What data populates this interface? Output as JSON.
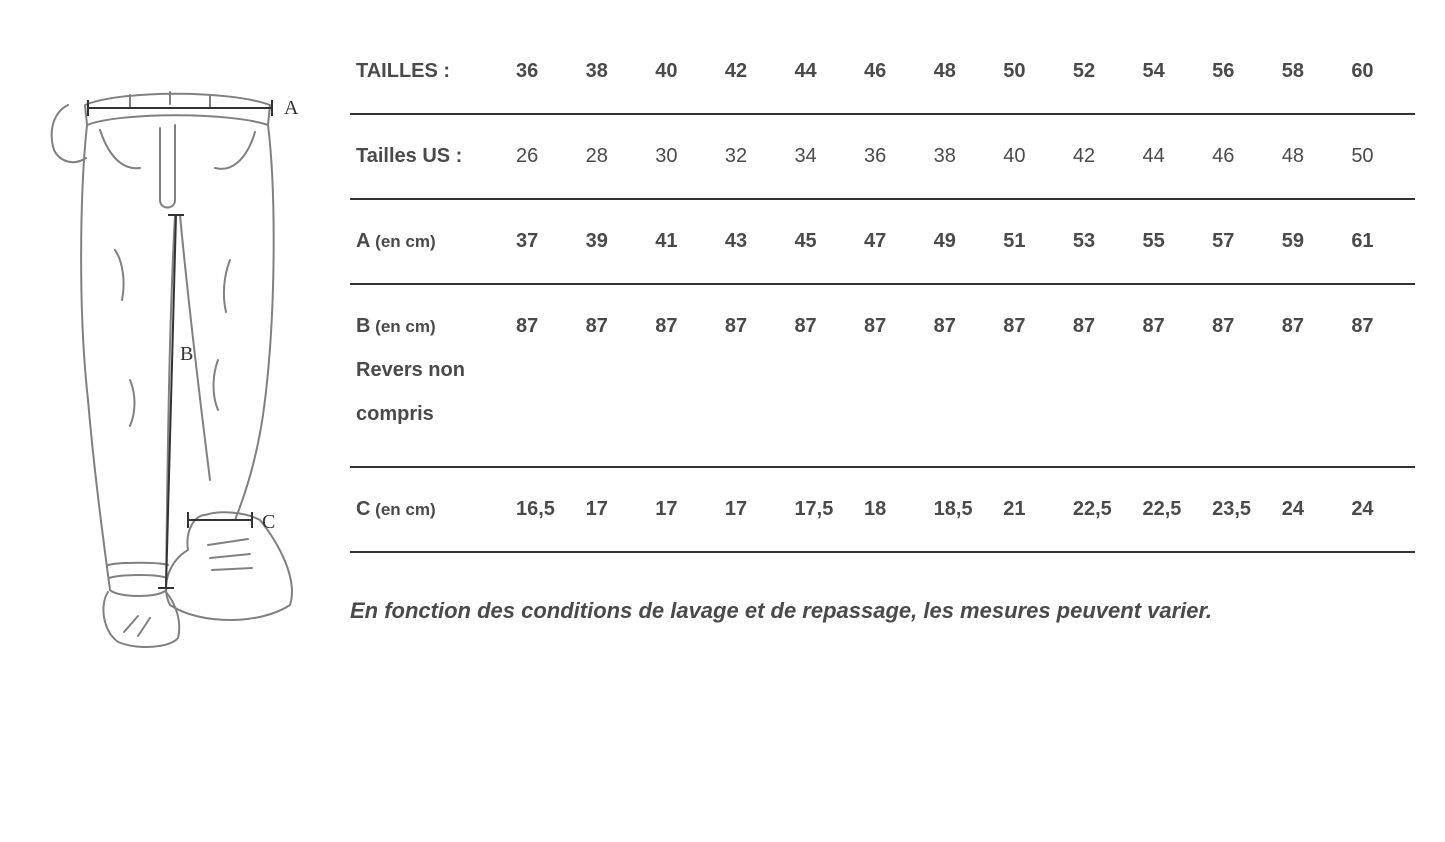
{
  "diagram": {
    "labels": {
      "a": "A",
      "b": "B",
      "c": "C"
    },
    "stroke_color": "#808080",
    "label_color": "#333333"
  },
  "table": {
    "header_label": "TAILLES :",
    "header_values": [
      "36",
      "38",
      "40",
      "42",
      "44",
      "46",
      "48",
      "50",
      "52",
      "54",
      "56",
      "58",
      "60"
    ],
    "rows": [
      {
        "label": "Tailles US :",
        "label_extra": "",
        "values": [
          "26",
          "28",
          "30",
          "32",
          "34",
          "36",
          "38",
          "40",
          "42",
          "44",
          "46",
          "48",
          "50"
        ],
        "light": true
      },
      {
        "label_main": "A",
        "label_sub": " (en cm)",
        "label_extra": "",
        "values": [
          "37",
          "39",
          "41",
          "43",
          "45",
          "47",
          "49",
          "51",
          "53",
          "55",
          "57",
          "59",
          "61"
        ]
      },
      {
        "label_main": "B",
        "label_sub": " (en cm)",
        "label_extra": "Revers non compris",
        "values": [
          "87",
          "87",
          "87",
          "87",
          "87",
          "87",
          "87",
          "87",
          "87",
          "87",
          "87",
          "87",
          "87"
        ]
      },
      {
        "label_main": "C",
        "label_sub": " (en cm)",
        "label_extra": "",
        "values": [
          "16,5",
          "17",
          "17",
          "17",
          "17,5",
          "18",
          "18,5",
          "21",
          "22,5",
          "22,5",
          "23,5",
          "24",
          "24"
        ]
      }
    ]
  },
  "footnote": "En fonction des conditions de lavage et de repassage, les mesures peuvent varier.",
  "colors": {
    "text": "#4a4a4a",
    "border": "#333333",
    "background": "#ffffff"
  }
}
